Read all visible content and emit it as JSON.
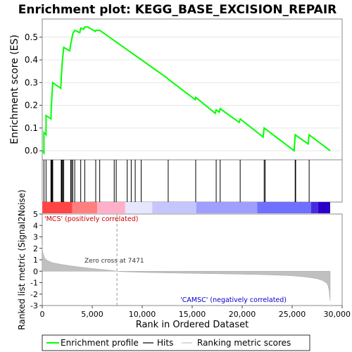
{
  "chart_data": {
    "type": "line",
    "title": "Enrichment plot: KEGG_BASE_EXCISION_REPAIR",
    "xlabel": "Rank in Ordered Dataset",
    "top_panel": {
      "ylabel": "Enrichment score (ES)",
      "xlim": [
        0,
        30000
      ],
      "ylim": [
        -0.04,
        0.58
      ],
      "yticks": [
        "0.0",
        "0.1",
        "0.2",
        "0.3",
        "0.4",
        "0.5"
      ],
      "ytick_values": [
        0.0,
        0.1,
        0.2,
        0.3,
        0.4,
        0.5
      ],
      "grid": true,
      "series": {
        "name": "Enrichment profile",
        "color": "#00ff00",
        "x": [
          0,
          170,
          170,
          380,
          380,
          870,
          900,
          960,
          1000,
          1050,
          1850,
          1900,
          1950,
          2000,
          2050,
          2150,
          2750,
          2850,
          2950,
          3050,
          3250,
          3750,
          3850,
          4150,
          4250,
          4550,
          5300,
          5350,
          5650,
          5750,
          12500,
          12600,
          15300,
          15350,
          17300,
          17400,
          17700,
          17800,
          19700,
          19800,
          22100,
          22200,
          25200,
          25300,
          26600,
          26700,
          28800
        ],
        "y": [
          0.0,
          -0.01,
          0.08,
          0.07,
          0.155,
          0.14,
          0.19,
          0.23,
          0.265,
          0.3,
          0.275,
          0.32,
          0.35,
          0.39,
          0.41,
          0.455,
          0.44,
          0.47,
          0.49,
          0.515,
          0.53,
          0.52,
          0.54,
          0.535,
          0.545,
          0.545,
          0.525,
          0.53,
          0.53,
          0.53,
          0.32,
          0.315,
          0.225,
          0.235,
          0.165,
          0.18,
          0.17,
          0.185,
          0.125,
          0.14,
          0.06,
          0.1,
          0.0,
          0.07,
          0.03,
          0.07,
          0.0
        ]
      }
    },
    "hits": {
      "name": "Hits",
      "ranks": [
        170,
        380,
        870,
        900,
        960,
        1000,
        1050,
        1900,
        1950,
        2000,
        2050,
        2150,
        2850,
        2950,
        3050,
        3250,
        3850,
        4250,
        5350,
        5750,
        7200,
        7400,
        8500,
        8900,
        9300,
        9900,
        12600,
        15350,
        17400,
        17800,
        19800,
        22200,
        22300,
        25300,
        25350,
        26700
      ]
    },
    "color_bar": {
      "colors": [
        "#ff4444",
        "#ff7f7f",
        "#ffb0c8",
        "#e6e6ff",
        "#c6c6ff",
        "#9f9fff",
        "#7070ff",
        "#4a2ae0",
        "#2a00c8"
      ],
      "boundaries": [
        0,
        3000,
        5500,
        8300,
        11000,
        15400,
        21500,
        26900,
        27600,
        28800
      ]
    },
    "bottom_panel": {
      "ylabel": "Ranked list metric (Signal2Noise)",
      "xlim": [
        0,
        30000
      ],
      "ylim": [
        -3,
        5
      ],
      "yticks": [
        "-3",
        "-2",
        "-1",
        "0",
        "1",
        "2",
        "3",
        "4",
        "5"
      ],
      "ytick_values": [
        -3,
        -2,
        -1,
        0,
        1,
        2,
        3,
        4,
        5
      ],
      "xticks": [
        "0",
        "5,000",
        "10,000",
        "15,000",
        "20,000",
        "25,000",
        "30,000"
      ],
      "xtick_values": [
        0,
        5000,
        10000,
        15000,
        20000,
        25000,
        30000
      ],
      "series": {
        "name": "Ranking metric scores",
        "x": [
          0,
          30,
          100,
          250,
          500,
          1000,
          2000,
          3000,
          4000,
          5000,
          6000,
          7000,
          7471,
          8000,
          10000,
          12000,
          15000,
          18000,
          20000,
          22000,
          24000,
          25000,
          26000,
          27000,
          27500,
          28000,
          28300,
          28500,
          28600,
          28700,
          28800
        ],
        "y": [
          2.3,
          1.8,
          1.5,
          1.15,
          0.95,
          0.75,
          0.58,
          0.45,
          0.34,
          0.24,
          0.15,
          0.07,
          0.0,
          -0.04,
          -0.1,
          -0.14,
          -0.19,
          -0.23,
          -0.26,
          -0.3,
          -0.36,
          -0.4,
          -0.47,
          -0.58,
          -0.66,
          -0.8,
          -0.95,
          -1.1,
          -1.3,
          -1.7,
          -2.6
        ]
      },
      "zero_cross_label": "Zero cross at 7471",
      "zero_cross": 7471,
      "pos_label": "'MCS' (positively correlated)",
      "neg_label": "'CAMSC' (negatively correlated)"
    },
    "legend": {
      "placement": "bottom",
      "items": [
        {
          "label": "Enrichment profile",
          "color": "#00ff00"
        },
        {
          "label": "Hits",
          "color": "#000000"
        },
        {
          "label": "Ranking metric scores",
          "color": "#c0c0c0"
        }
      ]
    }
  }
}
